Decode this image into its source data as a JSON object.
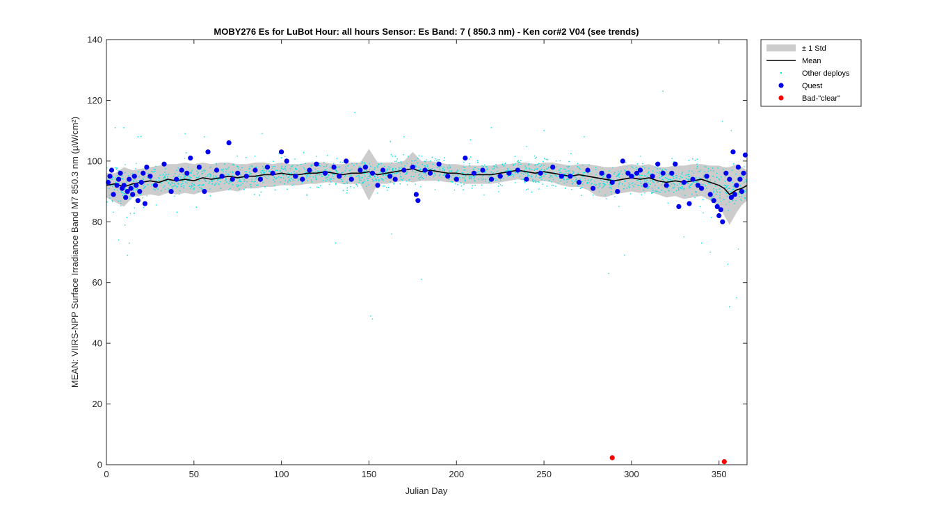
{
  "chart_data": {
    "type": "scatter",
    "title": "MOBY276   Es for LuBot  Hour: all hours  Sensor: Es Band: 7 ( 850.3 nm)  - Ken cor#2 V04 (see trends)",
    "xlabel": "Julian Day",
    "ylabel": "MEAN: VIIRS-NPP Surface Irradiance Band M7 850.3 nm (µW/cm²)",
    "xlim": [
      0,
      366
    ],
    "ylim": [
      0,
      140
    ],
    "x_ticks": [
      0,
      50,
      100,
      150,
      200,
      250,
      300,
      350
    ],
    "y_ticks": [
      0,
      20,
      40,
      60,
      80,
      100,
      120,
      140
    ],
    "x_tick_labels": [
      "0",
      "50",
      "100",
      "150",
      "200",
      "250",
      "300",
      "350"
    ],
    "y_tick_labels": [
      "0",
      "20",
      "40",
      "60",
      "80",
      "100",
      "120",
      "140"
    ],
    "grid": false,
    "legend_placement": "outside-top-right",
    "legend": [
      {
        "label": "± 1 Std",
        "symbol": "band",
        "color": "#cccccc"
      },
      {
        "label": "Mean",
        "symbol": "line",
        "color": "#000000"
      },
      {
        "label": "Other deploys",
        "symbol": "small-dot",
        "color": "#00e6e6"
      },
      {
        "label": "Quest",
        "symbol": "dot",
        "color": "#0000ee"
      },
      {
        "label": "Bad-\"clear\"",
        "symbol": "dot",
        "color": "#ff0000"
      }
    ],
    "series": [
      {
        "name": "Mean",
        "kind": "line",
        "color": "#000000",
        "x": [
          0,
          5,
          10,
          15,
          20,
          25,
          30,
          35,
          40,
          45,
          50,
          55,
          60,
          65,
          70,
          75,
          80,
          85,
          90,
          95,
          100,
          105,
          110,
          115,
          120,
          125,
          130,
          135,
          140,
          145,
          150,
          155,
          160,
          165,
          170,
          175,
          180,
          185,
          190,
          195,
          200,
          205,
          210,
          215,
          220,
          225,
          230,
          235,
          240,
          245,
          250,
          255,
          260,
          265,
          270,
          275,
          280,
          285,
          290,
          295,
          300,
          305,
          310,
          315,
          320,
          325,
          330,
          335,
          340,
          345,
          350,
          353,
          356,
          360,
          363,
          366
        ],
        "y": [
          92,
          92.5,
          91.5,
          92.5,
          93,
          93.5,
          93,
          94,
          93.5,
          94,
          93.5,
          94.5,
          94,
          94.5,
          95,
          94.5,
          95,
          95,
          95.5,
          95.5,
          96,
          95.5,
          95.5,
          96,
          96,
          96.5,
          96,
          95.5,
          96,
          96,
          96.5,
          95.5,
          96,
          96.5,
          97,
          97.5,
          96.5,
          97,
          96.5,
          96,
          96,
          95.5,
          95.5,
          95.5,
          95.5,
          96,
          96.5,
          97,
          96.5,
          96,
          96.5,
          96,
          95.5,
          95,
          95.5,
          95,
          94.5,
          94,
          93.5,
          94,
          94.5,
          94,
          94.5,
          93.5,
          93,
          93.5,
          93,
          93.5,
          94,
          93,
          92,
          91,
          89,
          90.5,
          91,
          92
        ]
      },
      {
        "name": "± 1 Std",
        "kind": "band",
        "color": "#cccccc",
        "x": [
          0,
          5,
          10,
          15,
          20,
          25,
          30,
          35,
          40,
          45,
          50,
          55,
          60,
          65,
          70,
          75,
          80,
          85,
          90,
          95,
          100,
          105,
          110,
          115,
          120,
          125,
          130,
          135,
          140,
          145,
          150,
          155,
          160,
          165,
          170,
          175,
          180,
          185,
          190,
          195,
          200,
          205,
          210,
          215,
          220,
          225,
          230,
          235,
          240,
          245,
          250,
          255,
          260,
          265,
          270,
          275,
          280,
          285,
          290,
          295,
          300,
          305,
          310,
          315,
          320,
          325,
          330,
          335,
          340,
          345,
          350,
          353,
          356,
          360,
          363,
          366
        ],
        "upper": [
          96,
          96,
          98,
          97,
          97.5,
          98,
          98.5,
          99,
          99,
          99.5,
          99,
          99.5,
          99,
          99.5,
          99.5,
          99,
          99,
          99.5,
          99.5,
          99,
          99.5,
          99,
          99,
          99.5,
          99.5,
          99.5,
          99,
          99,
          99.5,
          99.5,
          104,
          99.5,
          99.5,
          99.5,
          100,
          103,
          100,
          100,
          99.5,
          99,
          99,
          98.5,
          98.5,
          98.5,
          98.5,
          99,
          99,
          99.5,
          99.5,
          99,
          99.5,
          99.5,
          99,
          98.5,
          99,
          99,
          98.5,
          98,
          98,
          98.5,
          99,
          98.5,
          99,
          98,
          98,
          98.5,
          98.5,
          99,
          99,
          98.5,
          98.5,
          98,
          98,
          99,
          98,
          97
        ],
        "lower": [
          88,
          86.5,
          85,
          88,
          88.5,
          89,
          88.5,
          89.5,
          89,
          89.5,
          89,
          90,
          89.5,
          90,
          90.5,
          90,
          91,
          91,
          91.5,
          91.5,
          92,
          92,
          92,
          92.5,
          92.5,
          93,
          93,
          92.5,
          92.5,
          92.5,
          87,
          92.5,
          92.5,
          93,
          93.5,
          93,
          93.5,
          93.5,
          93.5,
          93,
          93,
          92.5,
          92.5,
          92.5,
          92.5,
          93,
          93.5,
          94,
          93.5,
          93,
          93.5,
          93,
          92,
          91.5,
          91.5,
          90.5,
          88.5,
          88,
          89,
          89.5,
          90,
          89.5,
          90,
          89,
          88,
          88.5,
          87.5,
          88,
          88.5,
          87,
          85,
          82,
          79,
          83,
          85.5,
          87
        ]
      },
      {
        "name": "Quest",
        "kind": "points",
        "color": "#0000ee",
        "x": [
          1,
          2,
          3,
          4,
          6,
          7,
          8,
          9,
          10,
          11,
          12,
          13,
          14,
          15,
          16,
          17,
          18,
          19,
          20,
          21,
          22,
          23,
          25,
          28,
          33,
          37,
          40,
          43,
          46,
          48,
          53,
          56,
          58,
          63,
          66,
          70,
          72,
          75,
          80,
          85,
          88,
          92,
          95,
          100,
          103,
          108,
          112,
          116,
          120,
          125,
          130,
          133,
          137,
          140,
          145,
          148,
          152,
          155,
          158,
          162,
          165,
          170,
          175,
          177,
          178,
          182,
          185,
          190,
          195,
          200,
          205,
          210,
          215,
          220,
          225,
          230,
          235,
          240,
          248,
          255,
          260,
          265,
          270,
          275,
          278,
          283,
          287,
          289,
          292,
          295,
          298,
          300,
          303,
          305,
          308,
          312,
          315,
          318,
          320,
          323,
          325,
          327,
          330,
          333,
          335,
          338,
          340,
          343,
          345,
          347,
          349,
          350,
          351,
          352,
          354,
          356,
          357,
          358,
          359,
          360,
          361,
          362,
          363,
          364,
          365
        ],
        "y": [
          93,
          95,
          97,
          89,
          92,
          94,
          96,
          91,
          92,
          88,
          90,
          94,
          91,
          89,
          95,
          92,
          87,
          90,
          93,
          96,
          86,
          98,
          95,
          92,
          99,
          90,
          94,
          97,
          96,
          101,
          98,
          90,
          103,
          97,
          95,
          106,
          94,
          96,
          95,
          97,
          94,
          98,
          96,
          103,
          100,
          95,
          94,
          97,
          99,
          96,
          98,
          95,
          100,
          94,
          97,
          98,
          96,
          92,
          97,
          95,
          94,
          97,
          98,
          89,
          87,
          97,
          96,
          99,
          95,
          94,
          101,
          96,
          97,
          94,
          95,
          96,
          97,
          94,
          96,
          98,
          95,
          95,
          93,
          97,
          91,
          96,
          95,
          93,
          90,
          100,
          96,
          95,
          96,
          97,
          92,
          95,
          99,
          96,
          92,
          96,
          99,
          85,
          93,
          86,
          94,
          92,
          91,
          95,
          89,
          87,
          85,
          82,
          84,
          80,
          96,
          94,
          88,
          103,
          89,
          92,
          98,
          94,
          90,
          96,
          102
        ]
      },
      {
        "name": "Bad-\"clear\"",
        "kind": "points",
        "color": "#ff0000",
        "x": [
          289,
          353
        ],
        "y": [
          2.3,
          1
        ]
      },
      {
        "name": "Other deploys",
        "kind": "cloud",
        "color": "#00e6e6",
        "outliers": [
          {
            "x": 5,
            "y": 111
          },
          {
            "x": 10,
            "y": 111
          },
          {
            "x": 12,
            "y": 69
          },
          {
            "x": 7,
            "y": 74
          },
          {
            "x": 13,
            "y": 73
          },
          {
            "x": 56,
            "y": 108
          },
          {
            "x": 142,
            "y": 116
          },
          {
            "x": 151,
            "y": 49
          },
          {
            "x": 152,
            "y": 48
          },
          {
            "x": 131,
            "y": 73
          },
          {
            "x": 180,
            "y": 61
          },
          {
            "x": 163,
            "y": 76
          },
          {
            "x": 287,
            "y": 63
          },
          {
            "x": 318,
            "y": 123
          },
          {
            "x": 296,
            "y": 69
          },
          {
            "x": 356,
            "y": 52
          },
          {
            "x": 360,
            "y": 55
          },
          {
            "x": 361,
            "y": 71
          },
          {
            "x": 355,
            "y": 66
          },
          {
            "x": 352,
            "y": 113
          },
          {
            "x": 357,
            "y": 110
          },
          {
            "x": 340,
            "y": 73
          },
          {
            "x": 345,
            "y": 70
          },
          {
            "x": 330,
            "y": 75
          },
          {
            "x": 45,
            "y": 109
          },
          {
            "x": 89,
            "y": 109
          },
          {
            "x": 18,
            "y": 108
          },
          {
            "x": 273,
            "y": 108
          },
          {
            "x": 220,
            "y": 111
          },
          {
            "x": 250,
            "y": 110
          },
          {
            "x": 208,
            "y": 107
          },
          {
            "x": 170,
            "y": 108
          }
        ]
      }
    ]
  }
}
